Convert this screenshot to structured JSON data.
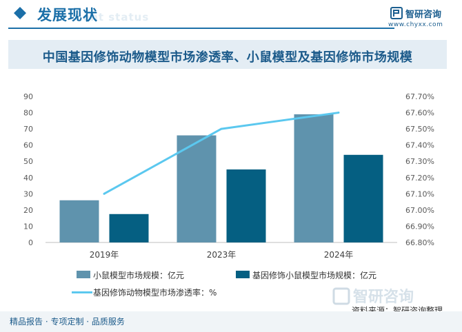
{
  "header": {
    "title": "发展现状",
    "ghost_text": "ent status",
    "logo_name": "智研咨询",
    "logo_url": "www.chyxx.com",
    "accent_color": "#1b6fa8"
  },
  "source": "资料来源：智研咨询整理",
  "footer": {
    "text": "精品报告 · 专项定制 · 品质服务"
  },
  "chart_data": {
    "type": "bar",
    "title": "中国基因修饰动物模型市场渗透率、小鼠模型及基因修饰市场规模",
    "categories": [
      "2019年",
      "2023年",
      "2024年"
    ],
    "series": [
      {
        "name": "小鼠模型市场规模：亿元",
        "type": "bar",
        "axis": "left",
        "color": "#5f93ad",
        "values": [
          26,
          66,
          79
        ]
      },
      {
        "name": "基因修饰小鼠模型市场规模：亿元",
        "type": "bar",
        "axis": "left",
        "color": "#055f82",
        "values": [
          17.5,
          45,
          54
        ]
      },
      {
        "name": "基因修饰动物模型市场渗透率：%",
        "type": "line",
        "axis": "right",
        "color": "#5bc8ef",
        "values": [
          67.1,
          67.5,
          67.6
        ]
      }
    ],
    "y_left": {
      "min": 0,
      "max": 90,
      "step": 10,
      "ticks": [
        "0",
        "10",
        "20",
        "30",
        "40",
        "50",
        "60",
        "70",
        "80",
        "90"
      ]
    },
    "y_right": {
      "min": 66.8,
      "max": 67.7,
      "step": 0.1,
      "ticks": [
        "66.80%",
        "66.90%",
        "67.00%",
        "67.10%",
        "67.20%",
        "67.30%",
        "67.40%",
        "67.50%",
        "67.60%",
        "67.70%"
      ]
    },
    "grid": false,
    "legend_position": "bottom"
  }
}
